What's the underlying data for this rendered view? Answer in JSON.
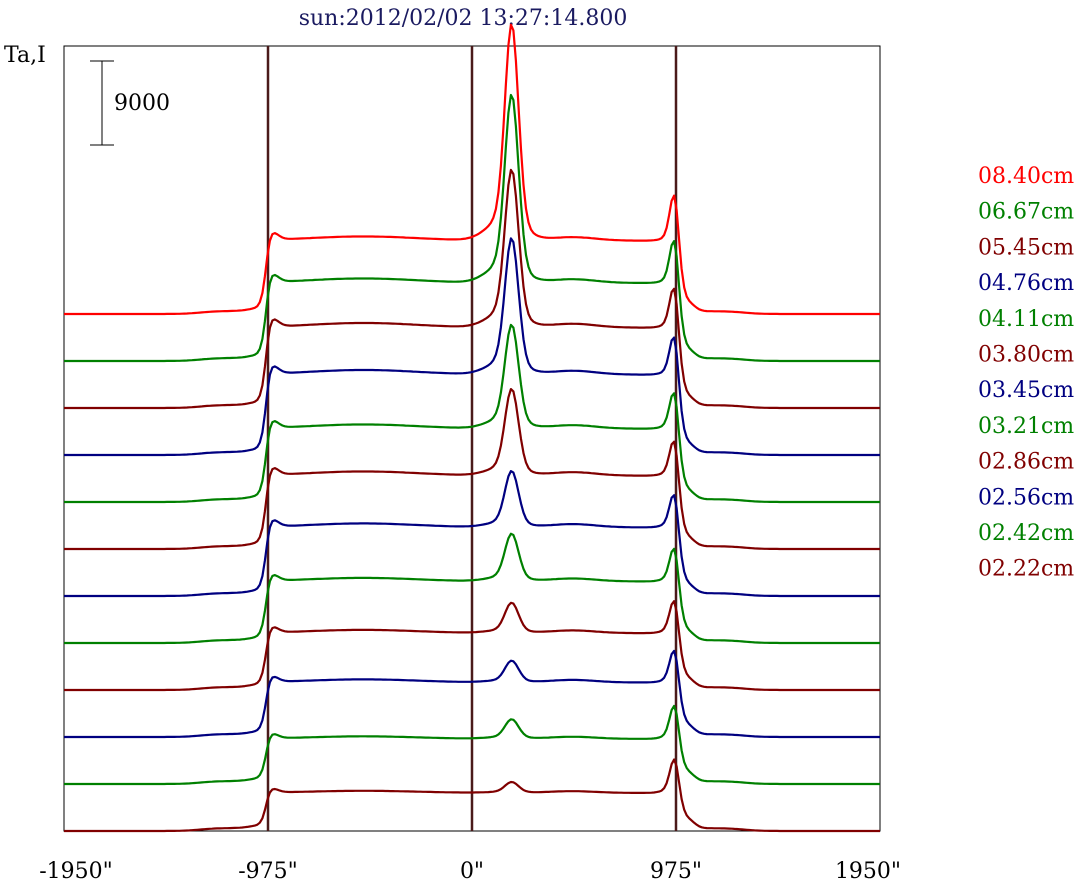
{
  "chart_data": {
    "type": "line",
    "title": "sun:2012/02/02 13:27:14.800",
    "ylabel": "Ta,I",
    "scale_bar_label": "9000",
    "xlim": [
      -1950,
      1950
    ],
    "x_ticks": [
      {
        "value": -1950,
        "label": "-1950\""
      },
      {
        "value": -975,
        "label": "-975\""
      },
      {
        "value": 0,
        "label": "0\""
      },
      {
        "value": 975,
        "label": "975\""
      },
      {
        "value": 1950,
        "label": "1950\""
      }
    ],
    "vertical_lines": [
      -975,
      0,
      975
    ],
    "grid": false,
    "legend_position": "right",
    "series": [
      {
        "name": "08.40cm",
        "color": "#ff0000",
        "peak": 1.0,
        "limb": 0.3
      },
      {
        "name": "06.67cm",
        "color": "#008000",
        "peak": 0.87,
        "limb": 0.32
      },
      {
        "name": "05.45cm",
        "color": "#800000",
        "peak": 0.73,
        "limb": 0.33
      },
      {
        "name": "04.76cm",
        "color": "#000080",
        "peak": 0.63,
        "limb": 0.33
      },
      {
        "name": "04.11cm",
        "color": "#008000",
        "peak": 0.48,
        "limb": 0.3
      },
      {
        "name": "03.80cm",
        "color": "#800000",
        "peak": 0.4,
        "limb": 0.3
      },
      {
        "name": "03.45cm",
        "color": "#000080",
        "peak": 0.26,
        "limb": 0.28
      },
      {
        "name": "03.21cm",
        "color": "#008000",
        "peak": 0.22,
        "limb": 0.25
      },
      {
        "name": "02.86cm",
        "color": "#800000",
        "peak": 0.14,
        "limb": 0.23
      },
      {
        "name": "02.56cm",
        "color": "#000080",
        "peak": 0.1,
        "limb": 0.22
      },
      {
        "name": "02.42cm",
        "color": "#008000",
        "peak": 0.09,
        "limb": 0.18
      },
      {
        "name": "02.22cm",
        "color": "#800000",
        "peak": 0.05,
        "limb": 0.15
      }
    ]
  },
  "colors": {
    "axis": "#000000",
    "vertical_line": "#4a1a1a",
    "title": "#1a1a60"
  }
}
